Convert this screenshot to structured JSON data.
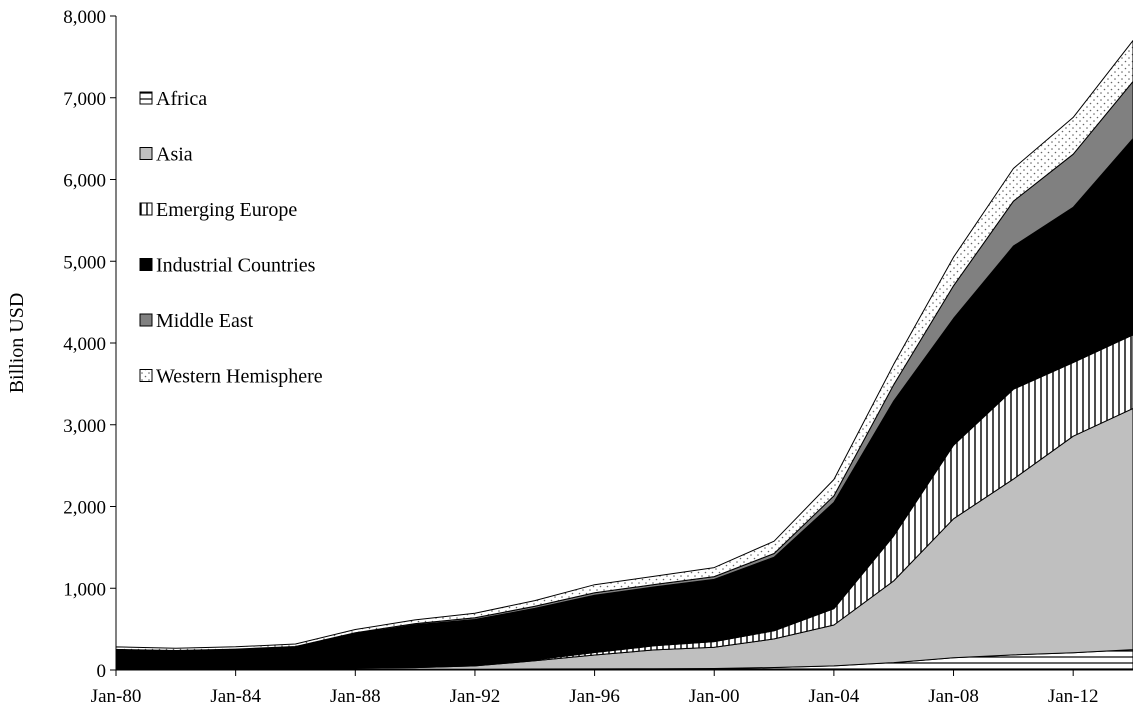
{
  "chart_data": {
    "type": "area",
    "stacked": true,
    "title": "",
    "xlabel": "",
    "ylabel": "Billion USD",
    "ylim": [
      0,
      8000
    ],
    "yticks": [
      0,
      1000,
      2000,
      3000,
      4000,
      5000,
      6000,
      7000,
      8000
    ],
    "ytick_labels": [
      "0",
      "1,000",
      "2,000",
      "3,000",
      "4,000",
      "5,000",
      "6,000",
      "7,000",
      "8,000"
    ],
    "x": [
      "Jan-80",
      "Jan-82",
      "Jan-84",
      "Jan-86",
      "Jan-88",
      "Jan-90",
      "Jan-92",
      "Jan-94",
      "Jan-96",
      "Jan-98",
      "Jan-00",
      "Jan-02",
      "Jan-04",
      "Jan-06",
      "Jan-08",
      "Jan-10",
      "Jan-12",
      "Jan-14"
    ],
    "xtick_labels": [
      "Jan-80",
      "Jan-84",
      "Jan-88",
      "Jan-92",
      "Jan-96",
      "Jan-00",
      "Jan-04",
      "Jan-08",
      "Jan-12"
    ],
    "xlim": [
      "Jan-80",
      "Jan-14"
    ],
    "grid": false,
    "legend_position": "top-left",
    "series": [
      {
        "name": "Africa",
        "pattern": "horizontal-lines",
        "values": [
          8,
          8,
          8,
          8,
          9,
          9,
          10,
          12,
          14,
          16,
          18,
          30,
          50,
          90,
          150,
          185,
          210,
          250
        ]
      },
      {
        "name": "Asia",
        "pattern": "solid-light-gray",
        "values": [
          2,
          4,
          6,
          8,
          12,
          20,
          40,
          100,
          170,
          230,
          260,
          350,
          500,
          1000,
          1700,
          2150,
          2650,
          2950
        ]
      },
      {
        "name": "Emerging Europe",
        "pattern": "vertical-lines",
        "values": [
          2,
          2,
          2,
          2,
          3,
          5,
          8,
          12,
          30,
          50,
          70,
          100,
          200,
          550,
          900,
          1100,
          900,
          900
        ]
      },
      {
        "name": "Industrial Countries",
        "pattern": "solid-black",
        "values": [
          230,
          215,
          230,
          260,
          420,
          520,
          560,
          630,
          700,
          720,
          760,
          900,
          1300,
          1650,
          1550,
          1750,
          1900,
          2400
        ]
      },
      {
        "name": "Middle East",
        "pattern": "solid-dark-gray",
        "values": [
          10,
          10,
          10,
          10,
          12,
          14,
          20,
          25,
          30,
          30,
          35,
          45,
          80,
          200,
          400,
          550,
          650,
          700
        ]
      },
      {
        "name": "Western Hemisphere",
        "pattern": "dotted",
        "values": [
          30,
          28,
          28,
          30,
          40,
          45,
          55,
          70,
          100,
          100,
          110,
          150,
          200,
          250,
          350,
          400,
          450,
          500
        ]
      }
    ]
  }
}
